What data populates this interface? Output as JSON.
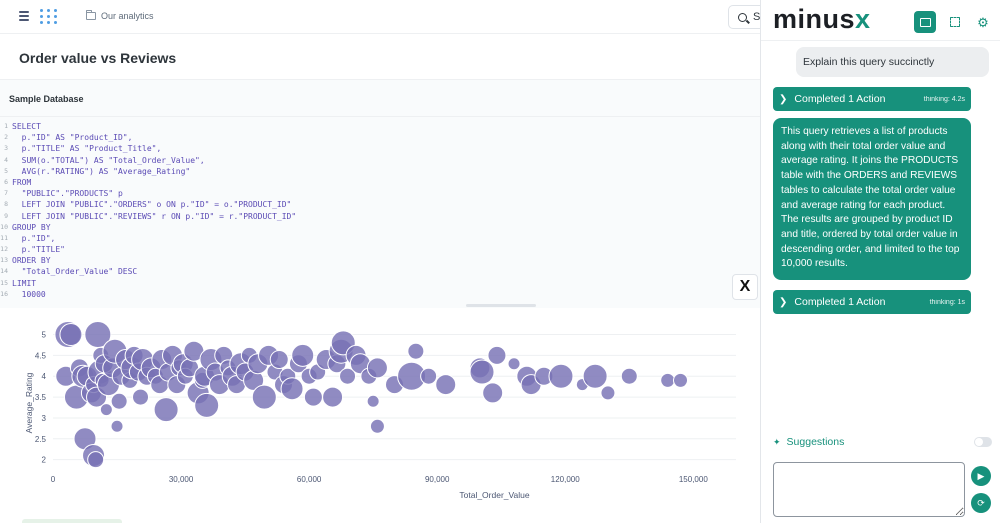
{
  "topbar": {
    "breadcrumb": "Our analytics",
    "search_label": "S"
  },
  "question": {
    "title": "Order value vs Reviews",
    "database": "Sample Database"
  },
  "sql_lines": [
    "SELECT",
    "  p.\"ID\" AS \"Product_ID\",",
    "  p.\"TITLE\" AS \"Product_Title\",",
    "  SUM(o.\"TOTAL\") AS \"Total_Order_Value\",",
    "  AVG(r.\"RATING\") AS \"Average_Rating\"",
    "FROM",
    "  \"PUBLIC\".\"PRODUCTS\" p",
    "  LEFT JOIN \"PUBLIC\".\"ORDERS\" o ON p.\"ID\" = o.\"PRODUCT_ID\"",
    "  LEFT JOIN \"PUBLIC\".\"REVIEWS\" r ON p.\"ID\" = r.\"PRODUCT_ID\"",
    "GROUP BY",
    "  p.\"ID\",",
    "  p.\"TITLE\"",
    "ORDER BY",
    "  \"Total_Order_Value\" DESC",
    "LIMIT",
    "  10000"
  ],
  "fab_label": "X",
  "chart_data": {
    "type": "scatter",
    "xlabel": "Total_Order_Value",
    "ylabel": "Average_Rating",
    "xlim": [
      0,
      160000
    ],
    "ylim": [
      1.8,
      5.3
    ],
    "x_ticks": [
      0,
      30000,
      60000,
      90000,
      120000,
      150000
    ],
    "x_tick_labels": [
      "0",
      "30,000",
      "60,000",
      "90,000",
      "120,000",
      "150,000"
    ],
    "y_ticks": [
      2,
      2.5,
      3,
      3.5,
      4,
      4.5,
      5
    ],
    "y_tick_labels": [
      "2",
      "2.5",
      "3",
      "3.5",
      "4",
      "4.5",
      "5"
    ],
    "grid": "horizontal",
    "color": "#7772b4",
    "points": [
      [
        3500,
        5.0,
        13
      ],
      [
        4200,
        5.0,
        11
      ],
      [
        10500,
        5.0,
        13
      ],
      [
        3000,
        4.0,
        10
      ],
      [
        5500,
        3.5,
        12
      ],
      [
        6200,
        4.2,
        9
      ],
      [
        7000,
        4.0,
        11
      ],
      [
        8000,
        4.0,
        10
      ],
      [
        9000,
        3.6,
        10
      ],
      [
        9500,
        3.8,
        8
      ],
      [
        10200,
        3.5,
        10
      ],
      [
        11000,
        4.1,
        12
      ],
      [
        11200,
        4.5,
        8
      ],
      [
        11500,
        3.9,
        7
      ],
      [
        12000,
        4.3,
        9
      ],
      [
        12500,
        3.2,
        6
      ],
      [
        13000,
        3.8,
        11
      ],
      [
        14000,
        4.2,
        10
      ],
      [
        14500,
        4.6,
        12
      ],
      [
        15500,
        3.4,
        8
      ],
      [
        16000,
        4.0,
        9
      ],
      [
        17000,
        4.4,
        10
      ],
      [
        18000,
        3.9,
        8
      ],
      [
        18500,
        4.2,
        11
      ],
      [
        19000,
        4.5,
        9
      ],
      [
        20000,
        4.1,
        9
      ],
      [
        20500,
        3.5,
        8
      ],
      [
        21000,
        4.4,
        11
      ],
      [
        22000,
        4.0,
        9
      ],
      [
        23000,
        4.2,
        10
      ],
      [
        24000,
        4.0,
        8
      ],
      [
        25000,
        3.8,
        9
      ],
      [
        25500,
        4.4,
        10
      ],
      [
        26500,
        3.2,
        12
      ],
      [
        27000,
        4.1,
        9
      ],
      [
        28000,
        4.5,
        10
      ],
      [
        29000,
        3.8,
        9
      ],
      [
        29500,
        4.2,
        8
      ],
      [
        30500,
        4.3,
        10
      ],
      [
        31000,
        4.0,
        8
      ],
      [
        32000,
        4.2,
        9
      ],
      [
        33000,
        4.6,
        10
      ],
      [
        34000,
        3.6,
        11
      ],
      [
        35000,
        3.9,
        8
      ],
      [
        35500,
        4.0,
        10
      ],
      [
        36000,
        3.3,
        12
      ],
      [
        37000,
        4.4,
        11
      ],
      [
        38000,
        4.1,
        9
      ],
      [
        39000,
        3.8,
        10
      ],
      [
        40000,
        4.5,
        9
      ],
      [
        41000,
        4.2,
        8
      ],
      [
        42000,
        4.0,
        10
      ],
      [
        43000,
        3.8,
        9
      ],
      [
        44000,
        4.3,
        11
      ],
      [
        45000,
        4.1,
        9
      ],
      [
        46000,
        4.5,
        8
      ],
      [
        47000,
        3.9,
        10
      ],
      [
        48000,
        4.3,
        10
      ],
      [
        49500,
        3.5,
        12
      ],
      [
        50500,
        4.5,
        10
      ],
      [
        52000,
        4.1,
        8
      ],
      [
        53000,
        4.4,
        9
      ],
      [
        54000,
        3.8,
        9
      ],
      [
        55000,
        4.0,
        8
      ],
      [
        56000,
        3.7,
        11
      ],
      [
        57500,
        4.3,
        9
      ],
      [
        58500,
        4.5,
        11
      ],
      [
        60000,
        4.0,
        8
      ],
      [
        61000,
        3.5,
        9
      ],
      [
        62000,
        4.1,
        8
      ],
      [
        64000,
        4.4,
        10
      ],
      [
        65500,
        3.5,
        10
      ],
      [
        66500,
        4.3,
        9
      ],
      [
        67500,
        4.6,
        12
      ],
      [
        68000,
        4.8,
        12
      ],
      [
        69000,
        4.0,
        8
      ],
      [
        71000,
        4.5,
        10
      ],
      [
        72000,
        4.3,
        10
      ],
      [
        74000,
        4.0,
        8
      ],
      [
        75000,
        3.4,
        6
      ],
      [
        76000,
        4.2,
        10
      ],
      [
        80000,
        3.8,
        9
      ],
      [
        84000,
        4.0,
        14
      ],
      [
        85000,
        4.6,
        8
      ],
      [
        88000,
        4.0,
        8
      ],
      [
        92000,
        3.8,
        10
      ],
      [
        100000,
        4.2,
        10
      ],
      [
        100500,
        4.1,
        12
      ],
      [
        103000,
        3.6,
        10
      ],
      [
        104000,
        4.5,
        9
      ],
      [
        108000,
        4.3,
        6
      ],
      [
        111000,
        4.0,
        10
      ],
      [
        112000,
        3.8,
        10
      ],
      [
        115000,
        4.0,
        9
      ],
      [
        119000,
        4.0,
        12
      ],
      [
        124000,
        3.8,
        6
      ],
      [
        127000,
        4.0,
        12
      ],
      [
        130000,
        3.6,
        7
      ],
      [
        135000,
        4.0,
        8
      ],
      [
        144000,
        3.9,
        7
      ],
      [
        147000,
        3.9,
        7
      ],
      [
        7500,
        2.5,
        11
      ],
      [
        9500,
        2.1,
        11
      ],
      [
        10000,
        2.0,
        8
      ],
      [
        15000,
        2.8,
        6
      ],
      [
        76000,
        2.8,
        7
      ]
    ]
  },
  "panel": {
    "brand_main": "minus",
    "brand_x": "x",
    "user_message": "Explain this query succinctly",
    "action1_label": "Completed 1 Action",
    "action1_meta": "thinking: 4.2s",
    "ai_message": "This query retrieves a list of products along with their total order value and average rating. It joins the PRODUCTS table with the ORDERS and REVIEWS tables to calculate the total order value and average rating for each product. The results are grouped by product ID and title, ordered by total order value in descending order, and limited to the top 10,000 results.",
    "action2_label": "Completed 1 Action",
    "action2_meta": "thinking: 1s",
    "suggestions_label": "Suggestions",
    "input_value": ""
  },
  "icons": {
    "accent": "#17917c"
  }
}
